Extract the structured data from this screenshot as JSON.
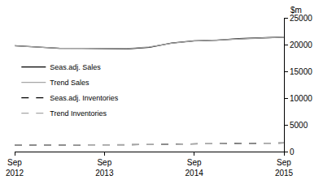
{
  "chart_data": {
    "type": "line",
    "ylabel": "$m",
    "categories": [
      "Sep 2012",
      null,
      null,
      null,
      "Sep 2013",
      null,
      null,
      null,
      "Sep 2014",
      null,
      null,
      null,
      "Sep 2015"
    ],
    "series": [
      {
        "name": "Seas.adj. Sales",
        "color": "#000000",
        "line_style": "solid",
        "values": [
          19800,
          19500,
          19300,
          19300,
          19200,
          19200,
          19500,
          20300,
          20700,
          20800,
          21100,
          21300,
          21400
        ]
      },
      {
        "name": "Trend Sales",
        "color": "#a6a6a6",
        "line_style": "solid",
        "values": [
          19750,
          19500,
          19350,
          19300,
          19250,
          19250,
          19550,
          20250,
          20650,
          20850,
          21100,
          21300,
          21400
        ]
      },
      {
        "name": "Seas.adj. Inventories",
        "color": "#000000",
        "line_style": "dash",
        "values": [
          1200,
          1200,
          1200,
          1250,
          1250,
          1250,
          1300,
          1400,
          1450,
          1500,
          1550,
          1600,
          1600
        ]
      },
      {
        "name": "Trend Inventories",
        "color": "#a6a6a6",
        "line_style": "dash",
        "values": [
          1200,
          1200,
          1220,
          1240,
          1250,
          1260,
          1310,
          1390,
          1450,
          1500,
          1550,
          1590,
          1600
        ]
      }
    ],
    "ylim": [
      0,
      25000
    ],
    "yticks": [
      0,
      5000,
      10000,
      15000,
      20000,
      25000
    ],
    "grid": false,
    "legend": "upper left"
  }
}
